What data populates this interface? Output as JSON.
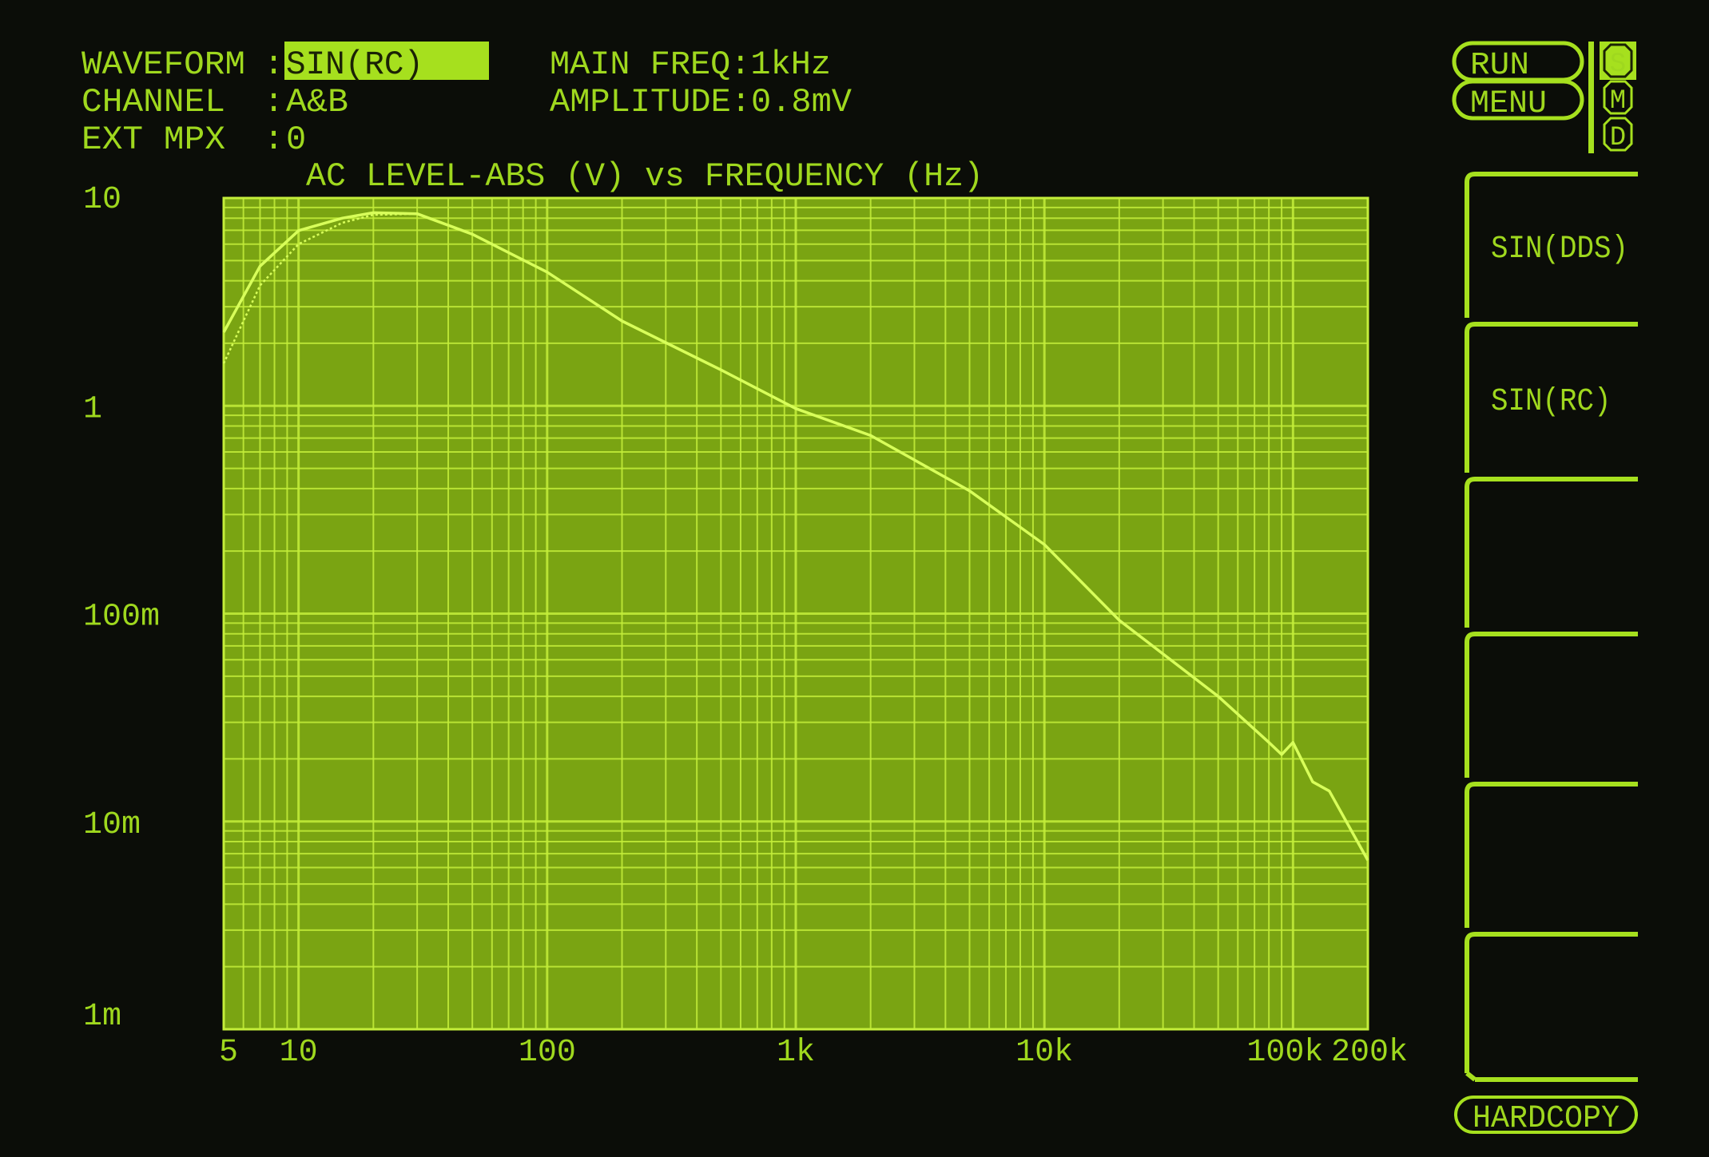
{
  "header": {
    "waveform_label": "WAVEFORM",
    "waveform_value": "SIN(RC)",
    "channel_label": "CHANNEL",
    "channel_value": "A&B",
    "ext_mpx_label": "EXT MPX",
    "ext_mpx_value": "0",
    "main_freq": "MAIN FREQ:1kHz",
    "amplitude": "AMPLITUDE:0.8mV",
    "colon": ":"
  },
  "controls": {
    "run": "RUN",
    "menu": "MENU",
    "modes": [
      "S",
      "M",
      "D"
    ],
    "active_mode": "S",
    "softkeys": [
      "SIN(DDS)",
      "SIN(RC)",
      "",
      "",
      "",
      ""
    ],
    "hardcopy": "HARDCOPY"
  },
  "colors": {
    "text": "#9fd81e",
    "plot_bg": "#7aa412",
    "grid": "#c4ee3a",
    "trace": "#d8ff5a",
    "screen_bg": "#0b0d08"
  },
  "chart_data": {
    "type": "line",
    "title": "AC LEVEL-ABS (V) vs FREQUENCY (Hz)",
    "x_scale": "log",
    "y_scale": "log",
    "xlim": [
      5,
      200000
    ],
    "ylim": [
      0.001,
      10
    ],
    "grid": true,
    "x_ticks": [
      {
        "value": 5,
        "label": "5"
      },
      {
        "value": 10,
        "label": "10"
      },
      {
        "value": 100,
        "label": "100"
      },
      {
        "value": 1000,
        "label": "1k"
      },
      {
        "value": 10000,
        "label": "10k"
      },
      {
        "value": 100000,
        "label": "100k"
      },
      {
        "value": 200000,
        "label": "200k"
      }
    ],
    "y_ticks": [
      {
        "value": 10,
        "label": "10"
      },
      {
        "value": 1,
        "label": "1"
      },
      {
        "value": 0.1,
        "label": "100m"
      },
      {
        "value": 0.01,
        "label": "10m"
      },
      {
        "value": 0.001,
        "label": "1m"
      }
    ],
    "x": [
      5,
      7,
      10,
      15,
      20,
      30,
      50,
      100,
      200,
      500,
      1000,
      2000,
      5000,
      10000,
      20000,
      50000,
      80000,
      90000,
      100000,
      120000,
      140000,
      200000
    ],
    "series": [
      {
        "values": [
          2.26,
          4.7,
          6.97,
          8.0,
          8.5,
          8.4,
          6.7,
          4.4,
          2.56,
          1.49,
          0.97,
          0.72,
          0.39,
          0.215,
          0.093,
          0.04,
          0.024,
          0.021,
          0.024,
          0.0155,
          0.014,
          0.0065
        ]
      },
      {
        "values": [
          1.6,
          3.8,
          6.0,
          7.6,
          8.3,
          8.4,
          6.7,
          4.4,
          2.56,
          1.49,
          0.97,
          0.72,
          0.39,
          0.215,
          0.093,
          0.04,
          0.024,
          0.021,
          0.024,
          0.0155,
          0.014,
          0.0065
        ]
      }
    ]
  }
}
